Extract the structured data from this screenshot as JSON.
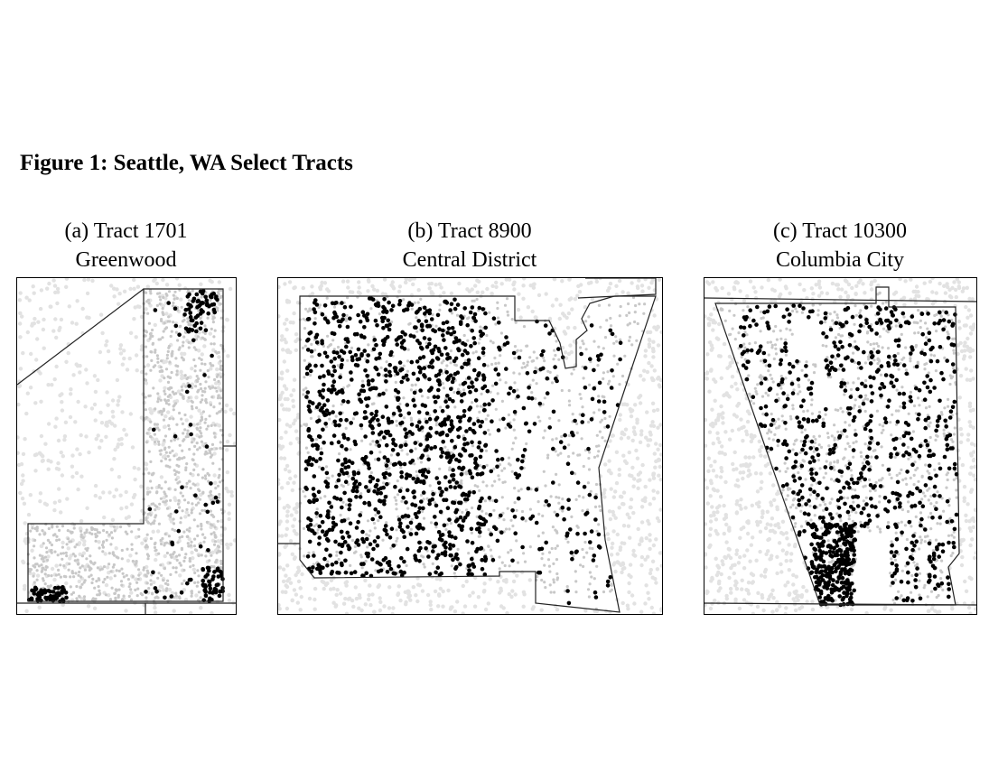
{
  "figure": {
    "title": "Figure 1: Seattle, WA Select Tracts"
  },
  "panels": [
    {
      "id": "a",
      "caption_line1": "(a) Tract 1701",
      "caption_line2": "Greenwood"
    },
    {
      "id": "b",
      "caption_line1": "(b) Tract 8900",
      "caption_line2": "Central District"
    },
    {
      "id": "c",
      "caption_line1": "(c) Tract 10300",
      "caption_line2": "Columbia City"
    }
  ],
  "colors": {
    "dark_points": "#000000",
    "light_points": "#c8c8c8",
    "faint_points": "#e2e2e2",
    "boundary": "#222222"
  }
}
